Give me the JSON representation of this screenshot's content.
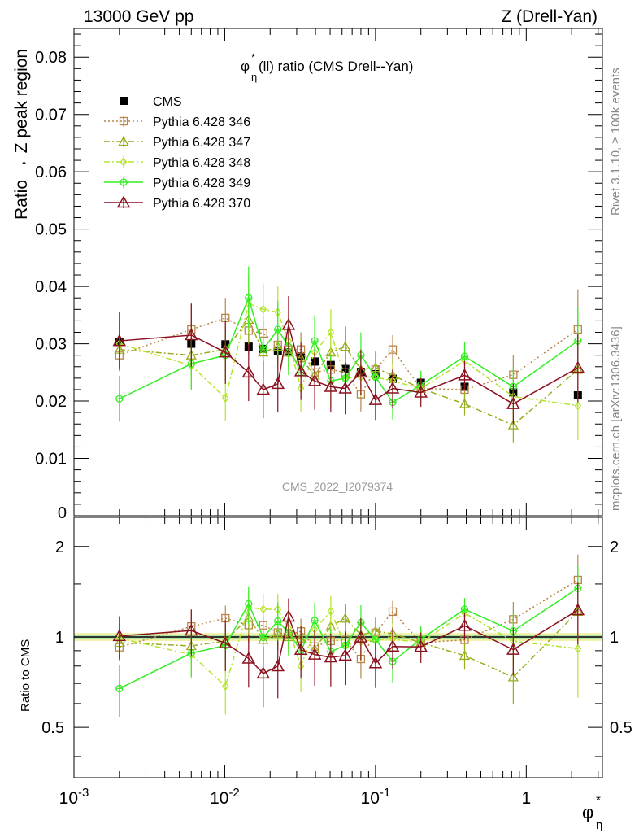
{
  "header": {
    "left": "13000 GeV pp",
    "right": "Z (Drell-Yan)"
  },
  "side_labels": {
    "rivet": "Rivet 3.1.10, ≥ 100k events",
    "mcplots": "mcplots.cern.ch [arXiv:1306.3436]"
  },
  "watermark": "CMS_2022_I2079374",
  "colors": {
    "CMS": "#000000",
    "346": "#b8864b",
    "347": "#9aad1f",
    "348": "#b4e52b",
    "349": "#33ee22",
    "370": "#8b1020",
    "band": "#f0f0a0",
    "band_inner": "#8fd9b0"
  },
  "chart_data": [
    {
      "type": "line",
      "panel": "main",
      "title_parts": {
        "pre": "φ",
        "sup": "*",
        "sub": "η",
        "post": "(ll) ratio (CMS Drell--Yan)"
      },
      "ylabel": "Ratio → Z peak region",
      "xscale": "log",
      "xlim": [
        0.001,
        3.2
      ],
      "ylim": [
        0,
        0.085
      ],
      "yticks": [
        "0",
        "0.01",
        "0.02",
        "0.03",
        "0.04",
        "0.05",
        "0.06",
        "0.07",
        "0.08"
      ],
      "legend_position": "top-left",
      "x": [
        0.002,
        0.006,
        0.0101,
        0.0144,
        0.018,
        0.0225,
        0.0265,
        0.032,
        0.0395,
        0.0505,
        0.063,
        0.08,
        0.1,
        0.13,
        0.2,
        0.39,
        0.82,
        2.2
      ],
      "series": [
        {
          "name": "CMS",
          "marker": "filled-square",
          "values": [
            0.0303,
            0.03,
            0.0299,
            0.0295,
            0.0291,
            0.0288,
            0.0285,
            0.0278,
            0.0269,
            0.0263,
            0.0256,
            0.0251,
            0.0247,
            0.0239,
            0.0232,
            0.0225,
            0.0215,
            0.021
          ]
        },
        {
          "name": "Pythia 6.428 346",
          "marker": "open-square",
          "style": "dotted",
          "values": [
            0.028,
            0.0325,
            0.0345,
            0.0323,
            0.0318,
            0.0298,
            0.029,
            0.029,
            0.025,
            0.0255,
            0.025,
            0.0212,
            0.0255,
            0.029,
            0.0222,
            0.022,
            0.0246,
            0.0325
          ],
          "errors": [
            0.0028,
            0.0045,
            0.0035,
            0.004,
            0.003,
            0.003,
            0.003,
            0.003,
            0.003,
            0.003,
            0.003,
            0.003,
            0.003,
            0.0025,
            0.002,
            0.002,
            0.0035,
            0.007
          ]
        },
        {
          "name": "Pythia 6.428 347",
          "marker": "open-triangle",
          "style": "dashdot",
          "values": [
            0.029,
            0.028,
            0.029,
            0.0342,
            0.0285,
            0.0295,
            0.0285,
            0.0275,
            0.0245,
            0.0285,
            0.0295,
            0.0255,
            0.0258,
            0.0245,
            0.0222,
            0.0195,
            0.0158,
            0.0255
          ],
          "errors": [
            0.003,
            0.004,
            0.004,
            0.0045,
            0.0035,
            0.0035,
            0.0035,
            0.0035,
            0.0035,
            0.0035,
            0.0035,
            0.003,
            0.003,
            0.003,
            0.002,
            0.002,
            0.003,
            0.006
          ]
        },
        {
          "name": "Pythia 6.428 348",
          "marker": "open-diamond",
          "style": "dashdot",
          "values": [
            0.03,
            0.0262,
            0.0205,
            0.037,
            0.036,
            0.0355,
            0.0305,
            0.0222,
            0.0285,
            0.032,
            0.024,
            0.0242,
            0.0242,
            0.0235,
            0.0222,
            0.027,
            0.0208,
            0.0192
          ],
          "errors": [
            0.0035,
            0.004,
            0.004,
            0.005,
            0.0045,
            0.0045,
            0.0045,
            0.004,
            0.004,
            0.004,
            0.004,
            0.0035,
            0.003,
            0.003,
            0.0025,
            0.0025,
            0.0035,
            0.006
          ]
        },
        {
          "name": "Pythia 6.428 349",
          "marker": "open-circle-cross",
          "style": "solid",
          "values": [
            0.0204,
            0.0265,
            0.028,
            0.038,
            0.029,
            0.0325,
            0.0295,
            0.025,
            0.0305,
            0.0235,
            0.024,
            0.028,
            0.0242,
            0.0198,
            0.0228,
            0.0278,
            0.0225,
            0.0305
          ],
          "errors": [
            0.004,
            0.0045,
            0.0045,
            0.0055,
            0.005,
            0.005,
            0.005,
            0.0045,
            0.0045,
            0.0045,
            0.0045,
            0.004,
            0.0035,
            0.003,
            0.0025,
            0.0025,
            0.0035,
            0.006
          ]
        },
        {
          "name": "Pythia 6.428 370",
          "marker": "open-triangle-large",
          "style": "solid",
          "values": [
            0.0305,
            0.0315,
            0.0285,
            0.025,
            0.022,
            0.023,
            0.0333,
            0.0252,
            0.0235,
            0.0225,
            0.0222,
            0.025,
            0.0202,
            0.0222,
            0.0215,
            0.0245,
            0.0195,
            0.0258
          ],
          "errors": [
            0.005,
            0.0055,
            0.0055,
            0.005,
            0.005,
            0.005,
            0.005,
            0.005,
            0.005,
            0.0045,
            0.0045,
            0.004,
            0.0035,
            0.0035,
            0.0025,
            0.0025,
            0.0035,
            0.006
          ]
        }
      ]
    },
    {
      "type": "line",
      "panel": "ratio",
      "ylabel": "Ratio to CMS",
      "xlabel_parts": {
        "main": "φ",
        "sup": "*",
        "sub": "η"
      },
      "xscale": "log",
      "xlim": [
        0.001,
        3.2
      ],
      "ylim": [
        0.34,
        2.5
      ],
      "yticks": [
        "0.5",
        "1",
        "2"
      ],
      "xticks": [
        {
          "base": "10",
          "exp": "-3",
          "value": 0.001
        },
        {
          "base": "10",
          "exp": "-2",
          "value": 0.01
        },
        {
          "base": "10",
          "exp": "-1",
          "value": 0.1
        },
        {
          "base": "1",
          "exp": "",
          "value": 1
        }
      ],
      "reference_band": [
        0.97,
        1.03
      ],
      "ratio_note": "each series value divided by CMS value at the same x"
    }
  ]
}
